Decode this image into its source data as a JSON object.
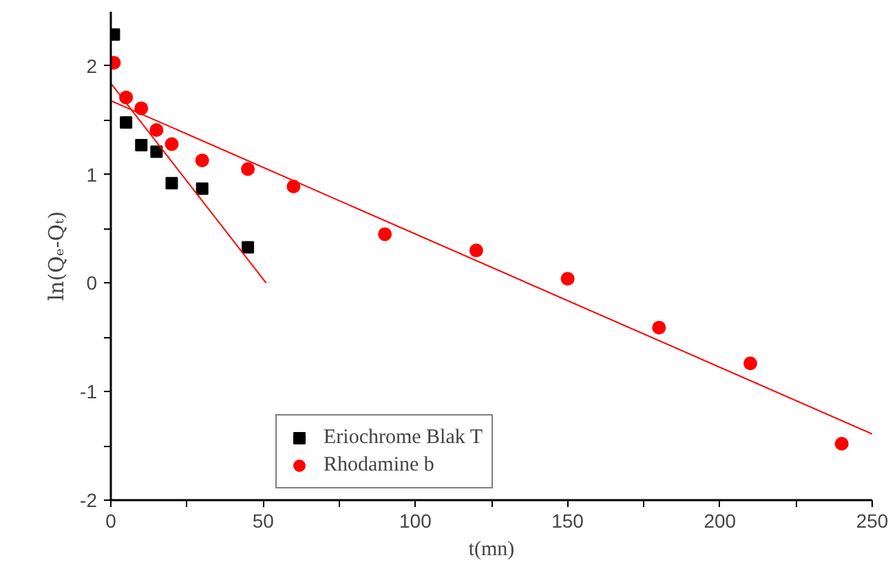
{
  "chart_data": {
    "type": "scatter",
    "xlabel": "t(mn)",
    "ylabel": "ln(Qₑ-Qₜ)",
    "xlim": [
      0,
      250
    ],
    "ylim": [
      -2,
      2.5
    ],
    "xticks": [
      0,
      {
        "value": 25,
        "label": null
      },
      50,
      {
        "value": 75,
        "label": null
      },
      100,
      {
        "value": 125,
        "label": null
      },
      150,
      {
        "value": 175,
        "label": null
      },
      200,
      {
        "value": 225,
        "label": null
      },
      250
    ],
    "yticks": [
      -2,
      {
        "value": -1.5,
        "label": null
      },
      -1,
      {
        "value": -0.5,
        "label": null
      },
      0,
      {
        "value": 0.5,
        "label": null
      },
      1,
      {
        "value": 1.5,
        "label": null
      },
      2
    ],
    "grid": false,
    "legend": "bottom",
    "series": [
      {
        "name": "Eriochrome Blak T",
        "marker": "square",
        "color": "#000000",
        "x": [
          1,
          5,
          10,
          15,
          20,
          30,
          45
        ],
        "values": [
          2.29,
          1.48,
          1.27,
          1.21,
          0.92,
          0.87,
          0.33
        ]
      },
      {
        "name": "Rhodamine b",
        "marker": "circle",
        "color": "#ff0000",
        "x": [
          1,
          5,
          10,
          15,
          20,
          30,
          45,
          60,
          90,
          120,
          150,
          180,
          210,
          240
        ],
        "values": [
          2.03,
          1.71,
          1.61,
          1.41,
          1.28,
          1.13,
          1.05,
          0.89,
          0.45,
          0.3,
          0.04,
          -0.41,
          -0.74,
          -1.48
        ]
      },
      {
        "type": "line",
        "color": "#ff0000",
        "x": [
          0,
          51
        ],
        "values": [
          1.84,
          0
        ]
      },
      {
        "type": "line",
        "color": "#ff0000",
        "x": [
          0,
          250
        ],
        "values": [
          1.68,
          -1.39
        ]
      }
    ]
  }
}
